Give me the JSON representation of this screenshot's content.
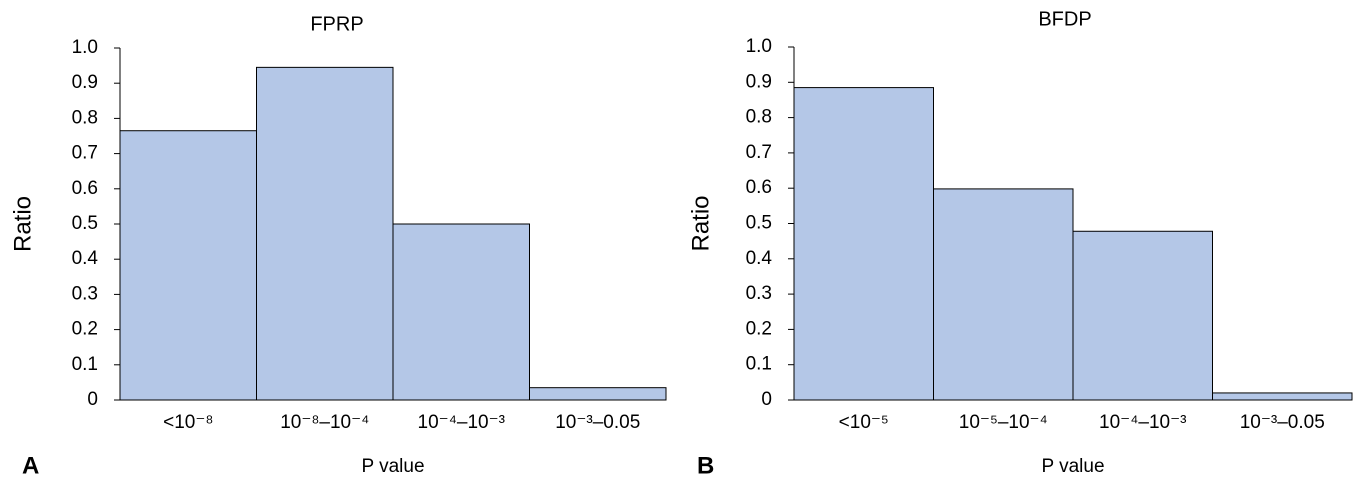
{
  "chart_data": [
    {
      "type": "bar",
      "title": "FPRP",
      "panel": "A",
      "x_label": "P value",
      "y_label": "Ratio",
      "categories": [
        "<10⁻⁸",
        "10⁻⁸–10⁻⁴",
        "10⁻⁴–10⁻³",
        "10⁻³–0.05"
      ],
      "values": [
        0.765,
        0.945,
        0.5,
        0.035
      ],
      "color": "#b4c7e7",
      "ylim": [
        0,
        1
      ],
      "yticks": [
        0,
        0.1,
        0.2,
        0.3,
        0.4,
        0.5,
        0.6,
        0.7,
        0.8,
        0.9,
        {
          "value": 1,
          "label": "1.0"
        }
      ],
      "grid": false
    },
    {
      "type": "bar",
      "title": "BFDP",
      "panel": "B",
      "x_label": "P value",
      "y_label": "Ratio",
      "categories": [
        "<10⁻⁵",
        "10⁻⁵–10⁻⁴",
        "10⁻⁴–10⁻³",
        "10⁻³–0.05"
      ],
      "values": [
        0.885,
        0.598,
        0.478,
        0.02
      ],
      "color": "#b4c7e7",
      "ylim": [
        0,
        1
      ],
      "yticks": [
        0,
        0.1,
        0.2,
        0.3,
        0.4,
        0.5,
        0.6,
        0.7,
        0.8,
        0.9,
        {
          "value": 1,
          "label": "1.0"
        }
      ],
      "grid": false
    }
  ]
}
